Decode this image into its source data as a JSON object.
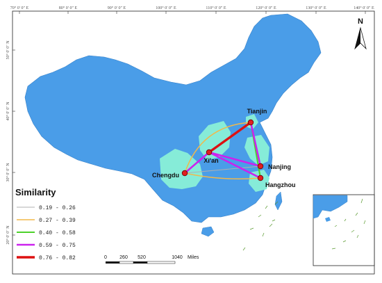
{
  "colors": {
    "land": "#4a9de8",
    "highlight": "#86ecd8",
    "frame": "#222222",
    "node": "#e02020"
  },
  "graticule": {
    "top_labels": [
      "70° 0′ 0″ E",
      "80° 0′ 0″ E",
      "90° 0′ 0″ E",
      "100° 0′ 0″ E",
      "110° 0′ 0″ E",
      "120° 0′ 0″ E",
      "130° 0′ 0″ E",
      "140° 0′ 0″ E"
    ],
    "left_labels": [
      "50° 0′ 0″ N",
      "40° 0′ 0″ N",
      "30° 0′ 0″ N",
      "20° 0′ 0″ N"
    ]
  },
  "north_arrow": {
    "label": "N"
  },
  "cities": [
    {
      "name": "Tianjin"
    },
    {
      "name": "Xi'an"
    },
    {
      "name": "Nanjing"
    },
    {
      "name": "Chengdu"
    },
    {
      "name": "Hangzhou"
    }
  ],
  "links": [
    {
      "from": "Chengdu",
      "to": "Tianjin",
      "class": 1
    },
    {
      "from": "Chengdu",
      "to": "Hangzhou",
      "class": 1
    },
    {
      "from": "Chengdu",
      "to": "Nanjing",
      "class": 0
    },
    {
      "from": "Tianjin",
      "to": "Hangzhou",
      "class": 2
    },
    {
      "from": "Chengdu",
      "to": "Xi'an",
      "class": 3
    },
    {
      "from": "Xi'an",
      "to": "Nanjing",
      "class": 3
    },
    {
      "from": "Xi'an",
      "to": "Hangzhou",
      "class": 3
    },
    {
      "from": "Tianjin",
      "to": "Nanjing",
      "class": 3
    },
    {
      "from": "Xi'an",
      "to": "Tianjin",
      "class": 4
    }
  ],
  "legend": {
    "title": "Similarity",
    "items": [
      {
        "label": "0.19 - 0.26",
        "color": "#b0b0b0",
        "width": 1
      },
      {
        "label": "0.27 - 0.39",
        "color": "#f2b84a",
        "width": 1.5
      },
      {
        "label": "0.40 - 0.58",
        "color": "#4cd12a",
        "width": 2
      },
      {
        "label": "0.59 - 0.75",
        "color": "#cc22ee",
        "width": 2.6
      },
      {
        "label": "0.76 - 0.82",
        "color": "#dd1111",
        "width": 3.4
      }
    ]
  },
  "scale_bar": {
    "ticks": [
      "0",
      "260",
      "520",
      "1040"
    ],
    "unit": "Miles"
  }
}
